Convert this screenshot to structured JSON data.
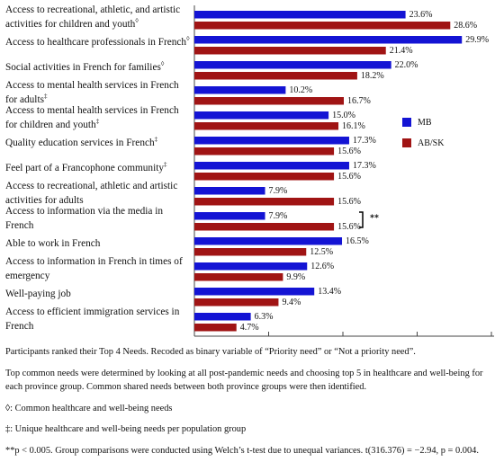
{
  "chart_data": {
    "type": "bar",
    "orientation": "horizontal",
    "categories": [
      "Access to recreational, athletic, and artistic activities for children and youth",
      "Access to healthcare professionals in French",
      "Social activities in French for families",
      "Access to mental health services in French for adults",
      "Access to mental health services in French for children and youth",
      "Quality education services in French",
      "Feel part of a Francophone community",
      "Access to recreational, athletic and artistic activities for adults",
      "Access to information via the media in French",
      "Able to work in French",
      "Access to information in French in times of emergency",
      "Well-paying job",
      "Access to efficient immigration services in French"
    ],
    "category_markers": [
      "◊",
      "◊",
      "◊",
      "‡",
      "‡",
      "‡",
      "‡",
      null,
      null,
      null,
      null,
      null,
      null
    ],
    "series": [
      {
        "name": "MB",
        "color": "#1414d4",
        "values": [
          23.6,
          29.9,
          22.0,
          10.2,
          15.0,
          17.3,
          17.3,
          7.9,
          7.9,
          16.5,
          12.6,
          13.4,
          6.3
        ],
        "value_labels": [
          "23.6%",
          "29.9%",
          "22.0%",
          "10.2%",
          "15.0%",
          "17.3%",
          "17.3%",
          "7.9%",
          "7.9%",
          "16.5%",
          "12.6%",
          "13.4%",
          "6.3%"
        ]
      },
      {
        "name": "AB/SK",
        "color": "#a01414",
        "values": [
          28.6,
          21.4,
          18.2,
          16.7,
          16.1,
          15.6,
          15.6,
          15.6,
          15.6,
          12.5,
          9.9,
          9.4,
          4.7
        ],
        "value_labels": [
          "28.6%",
          "21.4%",
          "18.2%",
          "16.7%",
          "16.1%",
          "15.6%",
          "15.6%",
          "15.6%",
          "15.6%",
          "12.5%",
          "9.9%",
          "9.4%",
          "4.7%"
        ]
      }
    ],
    "xlim": [
      0,
      33.5
    ],
    "xticks": [
      0,
      8.3,
      16.6,
      24.9,
      33.2
    ],
    "annotation": {
      "text": "**",
      "category": 8
    },
    "legend": "right"
  },
  "notes": [
    "Participants ranked their Top 4 Needs. Recoded as binary variable of “Priority need” or “Not a priority need”.",
    "Top common needs were determined by looking at all post-pandemic needs and choosing top 5 in healthcare and well-being for each province group. Common shared needs between both province groups were then identified.",
    "◊: Common healthcare and well-being needs",
    "‡: Unique healthcare and well-being needs per population group",
    "**p < 0.005. Group comparisons were conducted using Welch’s t-test due to unequal variances. t(316.376) = −2.94, p = 0.004."
  ]
}
